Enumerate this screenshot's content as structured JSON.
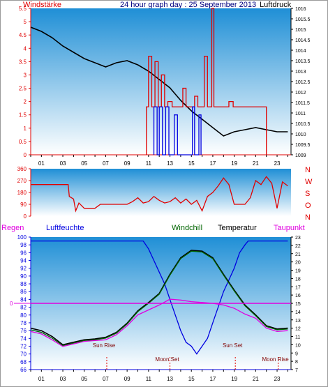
{
  "header": {
    "left_label": "Windstärke",
    "title": "24 hour graph day : 25 September 2013",
    "right_label": "Luftdruck"
  },
  "bottom_header": {
    "regen": "Regen",
    "luftfeuchte": "Luftfeuchte",
    "windchill": "Windchill",
    "temperatur": "Temperatur",
    "taupunkt": "Taupunkt"
  },
  "colors": {
    "red": "#e00000",
    "blue": "#0000e0",
    "black": "#000000",
    "magenta": "#e000e0",
    "green": "#006400",
    "gradient_top": "#1f8fd6",
    "gradient_bottom": "#ffffff"
  },
  "chart_data": [
    {
      "type": "line",
      "name": "wind-pressure",
      "x_tick_labels": [
        "01",
        "03",
        "05",
        "07",
        "09",
        "11",
        "13",
        "15",
        "17",
        "19",
        "21",
        "23"
      ],
      "x_tick_hours": [
        1,
        3,
        5,
        7,
        9,
        11,
        13,
        15,
        17,
        19,
        21,
        23
      ],
      "xlim": [
        0,
        24.3
      ],
      "left_axis": {
        "ylim": [
          0,
          5.5
        ],
        "ticks": [
          "0",
          "0.5",
          "1",
          "1.5",
          "2",
          "2.5",
          "3",
          "3.5",
          "4",
          "4.5",
          "5",
          "5.5"
        ]
      },
      "right_axis": {
        "ylim": [
          1009,
          1016
        ],
        "ticks": [
          "1009",
          "1009.5",
          "1010",
          "1010.5",
          "1011",
          "1011.5",
          "1012",
          "1012.5",
          "1013",
          "1013.5",
          "1014",
          "1014.5",
          "1015",
          "1015.5",
          "1016"
        ]
      },
      "series": [
        {
          "color": "black",
          "axis": "right",
          "points": [
            [
              0,
              1015.1
            ],
            [
              1,
              1014.9
            ],
            [
              2,
              1014.6
            ],
            [
              3,
              1014.2
            ],
            [
              4,
              1013.9
            ],
            [
              5,
              1013.6
            ],
            [
              6,
              1013.4
            ],
            [
              7,
              1013.2
            ],
            [
              8,
              1013.4
            ],
            [
              9,
              1013.5
            ],
            [
              10,
              1013.3
            ],
            [
              11,
              1013
            ],
            [
              12,
              1012.6
            ],
            [
              13,
              1012.2
            ],
            [
              14,
              1011.6
            ],
            [
              15,
              1011.1
            ],
            [
              16,
              1010.7
            ],
            [
              17,
              1010.3
            ],
            [
              18,
              1009.9
            ],
            [
              19,
              1010.1
            ],
            [
              20,
              1010.2
            ],
            [
              21,
              1010.3
            ],
            [
              22,
              1010.2
            ],
            [
              23,
              1010.1
            ],
            [
              24,
              1010.1
            ]
          ]
        },
        {
          "color": "red",
          "axis": "left",
          "style": "steps",
          "points": [
            [
              10.8,
              1.8
            ],
            [
              11.0,
              3.7
            ],
            [
              11.3,
              1.8
            ],
            [
              11.6,
              3.5
            ],
            [
              11.9,
              1.8
            ],
            [
              12.2,
              3.0
            ],
            [
              12.5,
              1.8
            ],
            [
              12.8,
              2.0
            ],
            [
              13.2,
              1.8
            ],
            [
              14.2,
              2.5
            ],
            [
              14.5,
              1.8
            ],
            [
              15.0,
              1.8
            ],
            [
              15.3,
              2.2
            ],
            [
              15.6,
              1.8
            ],
            [
              16.0,
              1.8
            ],
            [
              16.2,
              3.7
            ],
            [
              16.5,
              1.8
            ],
            [
              16.9,
              5.5
            ],
            [
              17.1,
              1.8
            ],
            [
              17.6,
              1.8
            ],
            [
              18.5,
              2.0
            ],
            [
              18.9,
              1.8
            ],
            [
              19.5,
              1.8
            ],
            [
              20.2,
              1.8
            ],
            [
              21.0,
              1.8
            ],
            [
              21.6,
              1.8
            ],
            [
              22.0,
              0
            ]
          ]
        },
        {
          "color": "blue",
          "axis": "left",
          "style": "steps",
          "points": [
            [
              11.5,
              1.8
            ],
            [
              11.8,
              0
            ],
            [
              12.0,
              1.8
            ],
            [
              12.3,
              0
            ],
            [
              12.6,
              1.8
            ],
            [
              12.9,
              0
            ],
            [
              13.4,
              1.5
            ],
            [
              13.7,
              0
            ],
            [
              15.1,
              1.8
            ],
            [
              15.3,
              0
            ],
            [
              15.7,
              1.5
            ],
            [
              15.9,
              0
            ]
          ]
        }
      ]
    },
    {
      "type": "line",
      "name": "wind-direction",
      "xlim": [
        0,
        24.3
      ],
      "left_axis": {
        "ylim": [
          0,
          360
        ],
        "ticks": [
          "0",
          "90",
          "180",
          "270",
          "360"
        ]
      },
      "right_labels": [
        "N",
        "W",
        "S",
        "O",
        "N"
      ],
      "series": [
        {
          "color": "red",
          "axis": "left",
          "points": [
            [
              0,
              240
            ],
            [
              3,
              240
            ],
            [
              3.5,
              240
            ],
            [
              3.6,
              150
            ],
            [
              4,
              130
            ],
            [
              4.2,
              40
            ],
            [
              4.5,
              100
            ],
            [
              5,
              60
            ],
            [
              6,
              60
            ],
            [
              6.5,
              90
            ],
            [
              8,
              90
            ],
            [
              9,
              90
            ],
            [
              9.5,
              110
            ],
            [
              10,
              140
            ],
            [
              10.5,
              100
            ],
            [
              11,
              110
            ],
            [
              11.5,
              150
            ],
            [
              12,
              120
            ],
            [
              12.5,
              100
            ],
            [
              13,
              110
            ],
            [
              13.5,
              140
            ],
            [
              14,
              100
            ],
            [
              14.5,
              130
            ],
            [
              15,
              90
            ],
            [
              15.5,
              120
            ],
            [
              16,
              40
            ],
            [
              16.5,
              150
            ],
            [
              17,
              180
            ],
            [
              17.5,
              230
            ],
            [
              18,
              290
            ],
            [
              18.5,
              240
            ],
            [
              19,
              90
            ],
            [
              20,
              90
            ],
            [
              20.5,
              140
            ],
            [
              21,
              270
            ],
            [
              21.5,
              240
            ],
            [
              22,
              300
            ],
            [
              22.5,
              250
            ],
            [
              23,
              60
            ],
            [
              23.5,
              260
            ],
            [
              24,
              230
            ]
          ]
        }
      ]
    },
    {
      "type": "line",
      "name": "humidity-temperature",
      "xlim": [
        0,
        24.3
      ],
      "left_axis": {
        "ylim": [
          66,
          100
        ],
        "ticks": [
          "66",
          "68",
          "70",
          "72",
          "74",
          "76",
          "78",
          "80",
          "82",
          "84",
          "86",
          "88",
          "90",
          "92",
          "94",
          "96",
          "98",
          "100"
        ]
      },
      "right_axis": {
        "ylim": [
          7,
          23
        ],
        "ticks": [
          "7",
          "8",
          "9",
          "10",
          "11",
          "12",
          "13",
          "14",
          "15",
          "16",
          "17",
          "18",
          "19",
          "20",
          "21",
          "22",
          "23"
        ]
      },
      "regen_label": "0",
      "annotations": [
        {
          "text": "Sun Rise",
          "hour": 7.1
        },
        {
          "text": "Moon Set",
          "hour": 13.0
        },
        {
          "text": "Sun Set",
          "hour": 19.1
        },
        {
          "text": "Moon Rise",
          "hour": 23.1
        }
      ],
      "series": [
        {
          "color": "blue",
          "axis": "left",
          "points": [
            [
              0,
              99
            ],
            [
              10.5,
              99
            ],
            [
              11,
              97
            ],
            [
              11.5,
              94
            ],
            [
              12,
              91
            ],
            [
              12.5,
              88
            ],
            [
              13,
              84
            ],
            [
              13.5,
              80
            ],
            [
              14,
              76
            ],
            [
              14.5,
              73
            ],
            [
              15,
              72
            ],
            [
              15.5,
              70
            ],
            [
              16,
              72
            ],
            [
              16.5,
              74
            ],
            [
              17,
              78
            ],
            [
              17.5,
              82
            ],
            [
              18,
              86
            ],
            [
              18.5,
              89
            ],
            [
              19,
              92
            ],
            [
              19.5,
              96
            ],
            [
              20,
              98
            ],
            [
              20.3,
              99
            ],
            [
              24,
              99
            ]
          ]
        },
        {
          "color": "black",
          "axis": "right",
          "points": [
            [
              0,
              12
            ],
            [
              1,
              11.7
            ],
            [
              2,
              11
            ],
            [
              3,
              10
            ],
            [
              4,
              10.3
            ],
            [
              5,
              10.6
            ],
            [
              6,
              10.7
            ],
            [
              7,
              10.9
            ],
            [
              8,
              11.5
            ],
            [
              9,
              12.6
            ],
            [
              10,
              14.1
            ],
            [
              11,
              15.1
            ],
            [
              12,
              16.2
            ],
            [
              13,
              18.5
            ],
            [
              14,
              20.5
            ],
            [
              15,
              21.4
            ],
            [
              16,
              21.3
            ],
            [
              17,
              20.5
            ],
            [
              18,
              18.5
            ],
            [
              19,
              16.6
            ],
            [
              20,
              14.8
            ],
            [
              21,
              13.6
            ],
            [
              22,
              12.3
            ],
            [
              23,
              11.9
            ],
            [
              24,
              12
            ]
          ]
        },
        {
          "color": "green",
          "axis": "right",
          "points": [
            [
              0,
              11.8
            ],
            [
              1,
              11.5
            ],
            [
              2,
              10.8
            ],
            [
              3,
              9.9
            ],
            [
              4,
              10.2
            ],
            [
              5,
              10.5
            ],
            [
              6,
              10.6
            ],
            [
              7,
              10.8
            ],
            [
              8,
              11.4
            ],
            [
              9,
              12.5
            ],
            [
              10,
              14
            ],
            [
              11,
              15
            ],
            [
              12,
              16.1
            ],
            [
              13,
              18.4
            ],
            [
              14,
              20.4
            ],
            [
              15,
              21.3
            ],
            [
              16,
              21.2
            ],
            [
              17,
              20.4
            ],
            [
              18,
              18.4
            ],
            [
              19,
              16.5
            ],
            [
              20,
              14.7
            ],
            [
              21,
              13.5
            ],
            [
              22,
              12.2
            ],
            [
              23,
              11.8
            ],
            [
              24,
              11.9
            ]
          ]
        },
        {
          "color": "magenta",
          "axis": "right",
          "points": [
            [
              0,
              11.6
            ],
            [
              1,
              11.3
            ],
            [
              2,
              10.6
            ],
            [
              3,
              9.8
            ],
            [
              4,
              10.1
            ],
            [
              5,
              10.4
            ],
            [
              6,
              10.5
            ],
            [
              7,
              10.6
            ],
            [
              8,
              11.2
            ],
            [
              9,
              12.3
            ],
            [
              10,
              13.6
            ],
            [
              11,
              14.2
            ],
            [
              12,
              14.8
            ],
            [
              13,
              15.5
            ],
            [
              14,
              15.4
            ],
            [
              15,
              15.2
            ],
            [
              16,
              15.1
            ],
            [
              17,
              15.0
            ],
            [
              18,
              14.8
            ],
            [
              19,
              14.4
            ],
            [
              20,
              13.7
            ],
            [
              21,
              13.2
            ],
            [
              22,
              12.0
            ],
            [
              23,
              11.6
            ],
            [
              24,
              11.7
            ]
          ]
        }
      ]
    }
  ]
}
